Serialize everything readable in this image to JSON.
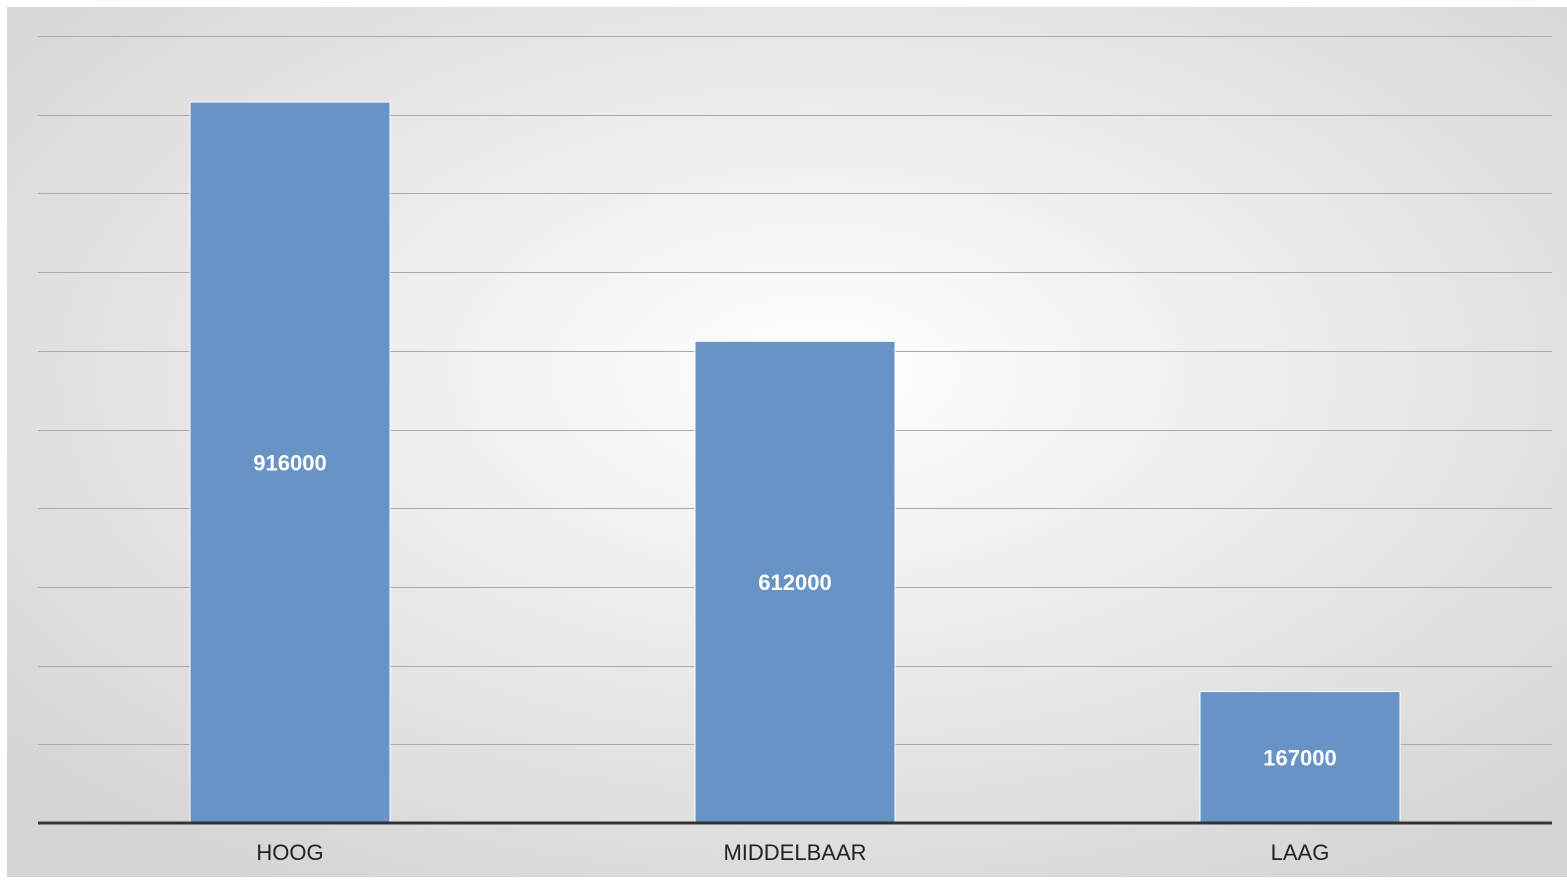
{
  "chart_data": {
    "type": "bar",
    "categories": [
      "HOOG",
      "MIDDELBAAR",
      "LAAG"
    ],
    "values": [
      916000,
      612000,
      167000
    ],
    "data_labels": [
      "916000",
      "612000",
      "167000"
    ],
    "ylim": [
      0,
      1000000
    ],
    "grid": true,
    "legend": "none",
    "colors": {
      "bar": "#6793c7",
      "bar_border": "#ffffff",
      "grid": "#a9a9a9",
      "axis": "#333333",
      "label": "#ffffff",
      "category": "#222222",
      "background_center": "#ffffff",
      "background_edge": "#d4d4d4"
    }
  }
}
